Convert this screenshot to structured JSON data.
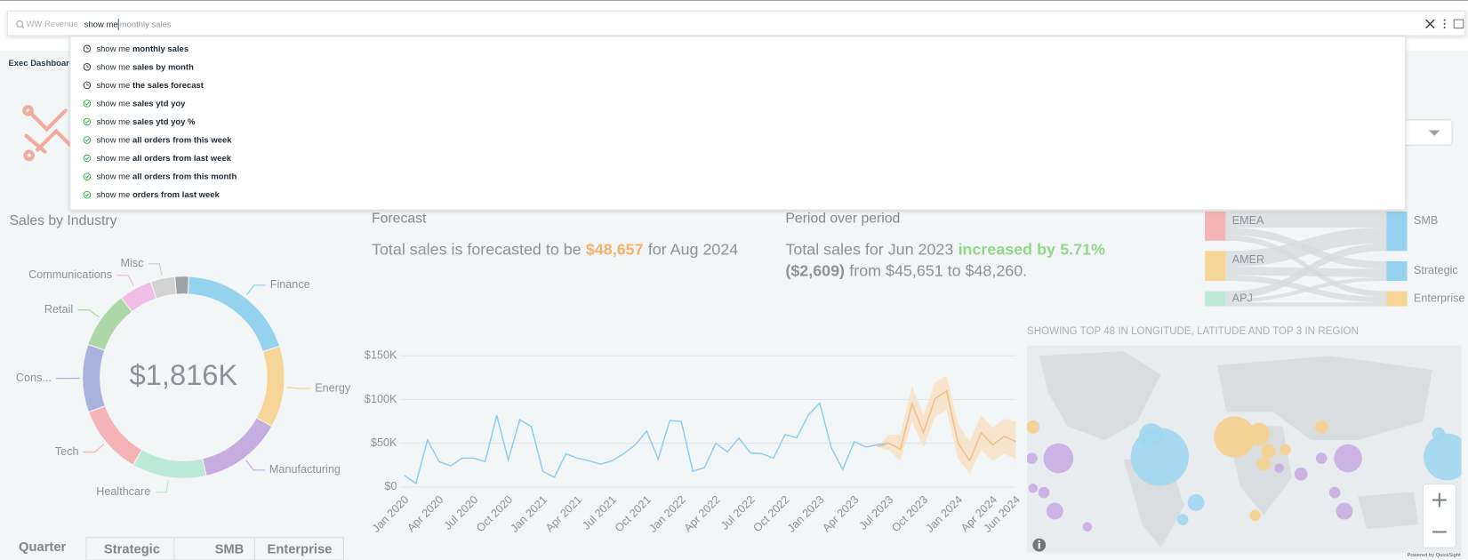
{
  "search": {
    "placeholder": "WW Revenue",
    "typed": "show me",
    "hint": "monthly sales"
  },
  "suggestions": [
    {
      "prefix": "show me",
      "text": "monthly sales",
      "kind": "recent"
    },
    {
      "prefix": "show me",
      "text": "sales by month",
      "kind": "recent"
    },
    {
      "prefix": "show me",
      "text": "the sales forecast",
      "kind": "recent"
    },
    {
      "prefix": "show me",
      "text": "sales ytd yoy",
      "kind": "verified"
    },
    {
      "prefix": "show me",
      "text": "sales ytd yoy %",
      "kind": "verified"
    },
    {
      "prefix": "show me",
      "text": "all orders from this week",
      "kind": "verified"
    },
    {
      "prefix": "show me",
      "text": "all orders from last week",
      "kind": "verified"
    },
    {
      "prefix": "show me",
      "text": "all orders from this month",
      "kind": "verified"
    },
    {
      "prefix": "show me",
      "text": "orders from last week",
      "kind": "verified"
    }
  ],
  "tab": "Exec Dashboard",
  "kpis": {
    "forecast": {
      "title": "Forecast",
      "before": "Total sales is forecasted to be",
      "value": "$48,657",
      "after": "for Aug 2024"
    },
    "period": {
      "title": "Period over period",
      "before": "Total sales for Jun 2023",
      "change": "increased by",
      "percent": "5.71%",
      "amount": "($2,609)",
      "after": "from $45,651 to $48,260."
    }
  },
  "table_header": [
    "Quarter",
    "Strategic",
    "SMB",
    "Enterprise"
  ],
  "footer": "Powered by QuickSight",
  "chart_data": [
    {
      "type": "pie",
      "title": "Sales by Industry",
      "center_label": "$1,816K",
      "categories": [
        "Finance",
        "Energy",
        "Manufacturing",
        "Healthcare",
        "Tech",
        "Cons...",
        "Retail",
        "Communications",
        "Misc",
        null
      ],
      "values": [
        348,
        237,
        242,
        217,
        202,
        197,
        166,
        96,
        71,
        40
      ],
      "colors": [
        "#95d2ee",
        "#f5d696",
        "#c5ade0",
        "#bde9d8",
        "#f4b3b7",
        "#a9b2dc",
        "#abd8a6",
        "#efbde6",
        "#d3d3d3",
        "#9ba3a9"
      ]
    },
    {
      "type": "line",
      "categories": [
        "Jan 2020",
        null,
        null,
        "Apr 2020",
        null,
        null,
        "Jul 2020",
        null,
        null,
        "Oct 2020",
        null,
        null,
        "Jan 2021",
        null,
        null,
        "Apr 2021",
        null,
        null,
        "Jul 2021",
        null,
        null,
        "Oct 2021",
        null,
        null,
        "Jan 2022",
        null,
        null,
        "Apr 2022",
        null,
        null,
        "Jul 2022",
        null,
        null,
        "Oct 2022",
        null,
        null,
        "Jan 2023",
        null,
        null,
        "Apr 2023",
        null,
        null,
        "Jul 2023",
        null,
        null,
        "Oct 2023",
        null,
        null,
        "Jan 2024",
        null,
        null,
        "Apr 2024",
        null,
        "Jun 2024"
      ],
      "series": [
        {
          "color": "#8ecdec",
          "values": [
            13000,
            4000,
            54000,
            29000,
            24000,
            33000,
            33000,
            29000,
            82000,
            31000,
            77000,
            69000,
            18000,
            11000,
            38000,
            33000,
            30000,
            26000,
            30000,
            38000,
            48000,
            64000,
            32000,
            76000,
            75000,
            18000,
            22000,
            50000,
            40000,
            56000,
            39000,
            38000,
            33000,
            60000,
            56000,
            82000,
            96000,
            45000,
            20000,
            52000,
            45651,
            48260,
            50000,
            null,
            null,
            null,
            null,
            null,
            null,
            null,
            null,
            null,
            null,
            null
          ]
        },
        {
          "color": "#f3bd85",
          "values": [
            null,
            null,
            null,
            null,
            null,
            null,
            null,
            null,
            null,
            null,
            null,
            null,
            null,
            null,
            null,
            null,
            null,
            null,
            null,
            null,
            null,
            null,
            null,
            null,
            null,
            null,
            null,
            null,
            null,
            null,
            null,
            null,
            null,
            null,
            null,
            null,
            null,
            null,
            null,
            null,
            null,
            46000,
            50000,
            43000,
            95000,
            62000,
            101000,
            110000,
            50000,
            30000,
            62000,
            48000,
            58000,
            52000
          ]
        }
      ],
      "band": {
        "color": "#f7e0c6",
        "lower": [
          null,
          null,
          null,
          null,
          null,
          null,
          null,
          null,
          null,
          null,
          null,
          null,
          null,
          null,
          null,
          null,
          null,
          null,
          null,
          null,
          null,
          null,
          null,
          null,
          null,
          null,
          null,
          null,
          null,
          null,
          null,
          null,
          null,
          null,
          null,
          null,
          null,
          null,
          null,
          null,
          null,
          46000,
          42000,
          30000,
          75000,
          45000,
          80000,
          88000,
          32000,
          15000,
          42000,
          30000,
          38000,
          32000
        ],
        "upper": [
          null,
          null,
          null,
          null,
          null,
          null,
          null,
          null,
          null,
          null,
          null,
          null,
          null,
          null,
          null,
          null,
          null,
          null,
          null,
          null,
          null,
          null,
          null,
          null,
          null,
          null,
          null,
          null,
          null,
          null,
          null,
          null,
          null,
          null,
          null,
          null,
          null,
          null,
          null,
          null,
          null,
          46000,
          60000,
          60000,
          115000,
          82000,
          120000,
          127000,
          72000,
          52000,
          82000,
          68000,
          78000,
          75000
        ]
      },
      "ylim": [
        0,
        150000
      ],
      "yticks": [
        {
          "value": 0,
          "label": "$0"
        },
        {
          "value": 50000,
          "label": "$50K"
        },
        {
          "value": 100000,
          "label": "$100K"
        },
        {
          "value": 150000,
          "label": "$150K"
        }
      ],
      "grid": true
    },
    {
      "type": "sankey",
      "nodes": [
        {
          "label": "EMEA",
          "color": "#f4b3b7",
          "side": "left"
        },
        {
          "label": "AMER",
          "color": "#f5d696",
          "side": "left"
        },
        {
          "label": "APJ",
          "color": "#bde9d8",
          "side": "left"
        },
        {
          "label": "SMB",
          "color": "#95d2ee",
          "side": "right"
        },
        {
          "label": "Strategic",
          "color": "#95d2ee",
          "side": "right"
        },
        {
          "label": "Enterprise",
          "color": "#f5d696",
          "side": "right"
        }
      ],
      "links": [
        {
          "source": 0,
          "target": 3,
          "value": 17
        },
        {
          "source": 0,
          "target": 4,
          "value": 8
        },
        {
          "source": 0,
          "target": 5,
          "value": 6
        },
        {
          "source": 1,
          "target": 3,
          "value": 17
        },
        {
          "source": 1,
          "target": 4,
          "value": 9
        },
        {
          "source": 1,
          "target": 5,
          "value": 6
        },
        {
          "source": 2,
          "target": 3,
          "value": 8
        },
        {
          "source": 2,
          "target": 4,
          "value": 4
        },
        {
          "source": 2,
          "target": 5,
          "value": 4
        }
      ]
    },
    {
      "type": "scatter",
      "title": "SHOWING TOP 48 IN LONGITUDE, LATITUDE AND TOP 3 IN REGION",
      "xlim": [
        -180,
        180
      ],
      "ylim": [
        -60,
        85
      ],
      "series": [
        {
          "color": "#f5d08e",
          "x": [
            -175,
            -8,
            12,
            20,
            16,
            34,
            64,
            9
          ],
          "values": [
            28,
            21,
            23,
            11,
            2,
            12,
            28,
            -34
          ],
          "sizes": [
            7,
            22,
            12,
            8,
            7,
            6,
            7,
            6
          ]
        },
        {
          "color": "#c8aee2",
          "x": [
            -176,
            -154,
            86,
            64,
            47,
            75,
            83,
            -157,
            -130,
            -175,
            -166,
            29
          ],
          "values": [
            6,
            6,
            6,
            6,
            -5,
            -18,
            -31,
            -31,
            -42,
            -15,
            -18,
            -1
          ],
          "sizes": [
            6,
            16,
            15,
            6,
            7,
            6,
            9,
            9,
            5,
            5,
            6,
            5
          ]
        },
        {
          "color": "#a2d7f0",
          "x": [
            -70,
            -77,
            -40,
            -51,
            168,
            161
          ],
          "values": [
            7,
            22,
            -25,
            -37,
            7,
            23
          ],
          "sizes": [
            31,
            13,
            9,
            6,
            25,
            7
          ]
        }
      ]
    }
  ]
}
